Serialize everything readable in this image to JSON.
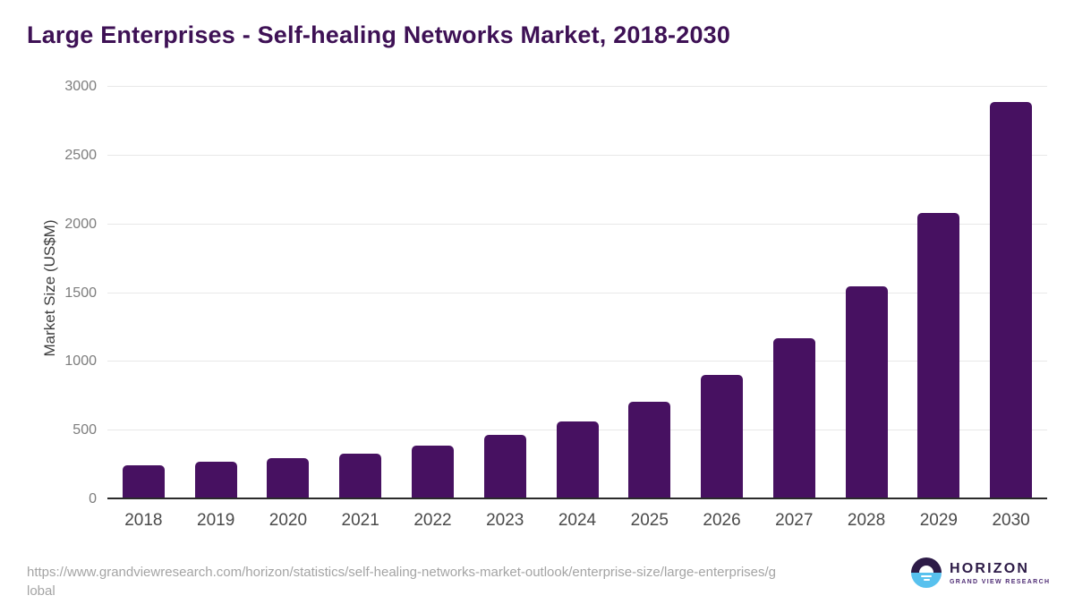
{
  "page": {
    "title": "Large Enterprises - Self-healing Networks Market, 2018-2030"
  },
  "chart_data": {
    "type": "bar",
    "title": "Large Enterprises - Self-healing Networks Market, 2018-2030",
    "categories": [
      "2018",
      "2019",
      "2020",
      "2021",
      "2022",
      "2023",
      "2024",
      "2025",
      "2026",
      "2027",
      "2028",
      "2029",
      "2030"
    ],
    "values": [
      250,
      275,
      300,
      335,
      390,
      470,
      565,
      710,
      905,
      1170,
      1550,
      2085,
      2890
    ],
    "xlabel": "",
    "ylabel": "Market Size (US$M)",
    "ylim": [
      0,
      3000
    ],
    "yticks": [
      0,
      500,
      1000,
      1500,
      2000,
      2500,
      3000
    ],
    "grid": "horizontal",
    "legend": "none",
    "bar_color": "#471161"
  },
  "footer": {
    "source_url_line1": "https://www.grandviewresearch.com/horizon/statistics/self-healing-networks-market-outlook/enterprise-size/large-enterprises/g",
    "source_url_line2": "lobal",
    "logo": {
      "name": "HORIZON",
      "subtitle": "GRAND VIEW RESEARCH"
    }
  },
  "colors": {
    "title": "#3e1155",
    "bar": "#471161",
    "axis_line": "#2b2b2b",
    "gridline": "#e8e8e8",
    "y_tick_label": "#7d7d7d",
    "x_tick_label": "#4a4a4a",
    "y_axis_title": "#3d3d3d",
    "url_text": "#a4a4a4",
    "logo_purple": "#2d1b47",
    "logo_blue": "#58c1ee",
    "logo_subtitle": "#4f2d75"
  }
}
